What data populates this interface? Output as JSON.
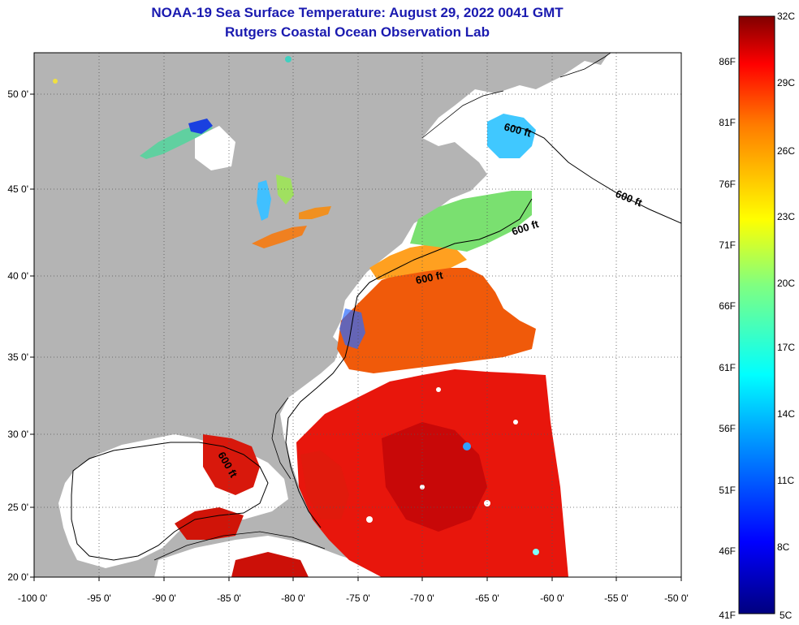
{
  "header": {
    "title": "NOAA-19 Sea Surface Temperature:  August 29, 2022 0041 GMT",
    "subtitle": "Rutgers Coastal Ocean Observation Lab"
  },
  "map": {
    "lon_range": [
      -100,
      -50
    ],
    "lat_range": [
      20,
      52
    ],
    "lon_ticks": [
      "-100 0'",
      "-95 0'",
      "-90 0'",
      "-85 0'",
      "-80 0'",
      "-75 0'",
      "-70 0'",
      "-65 0'",
      "-60 0'",
      "-55 0'",
      "-50 0'"
    ],
    "lat_ticks": [
      "50 0'",
      "45 0'",
      "40 0'",
      "35 0'",
      "30 0'",
      "25 0'",
      "20 0'"
    ],
    "contour_label": "600 ft",
    "land_color": "#b4b4b4",
    "no_data_color": "#ffffff",
    "grid": "dotted"
  },
  "colorbar": {
    "celsius": [
      "32C",
      "29C",
      "26C",
      "23C",
      "20C",
      "17C",
      "14C",
      "11C",
      "8C",
      "5C"
    ],
    "fahrenheit": [
      "86F",
      "81F",
      "76F",
      "71F",
      "66F",
      "61F",
      "56F",
      "51F",
      "46F",
      "41F"
    ]
  }
}
